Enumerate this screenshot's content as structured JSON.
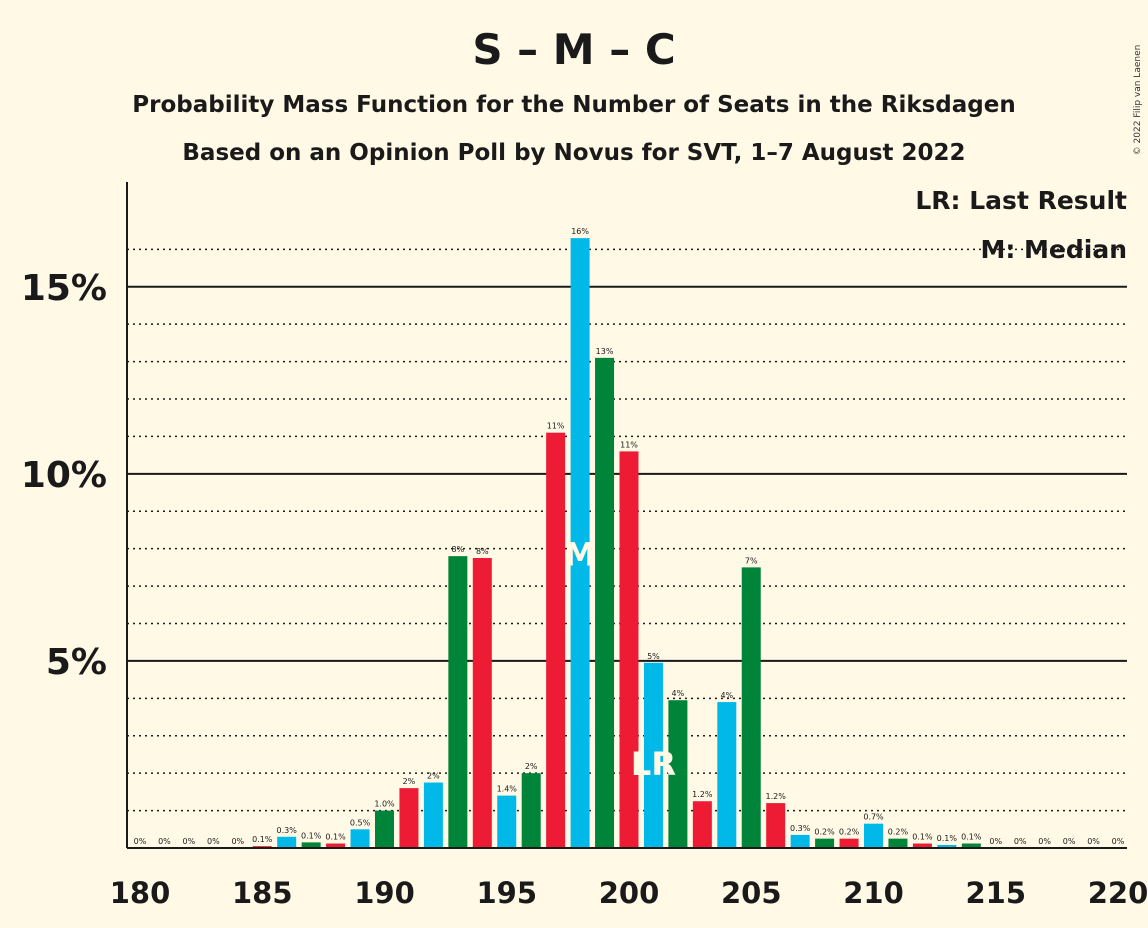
{
  "copyright": "© 2022 Filip van Laenen",
  "chart_data": {
    "type": "bar",
    "title": "S – M – C",
    "subtitle_1": "Probability Mass Function for the Number of Seats in the Riksdagen",
    "subtitle_2": "Based on an Opinion Poll by Novus for SVT, 1–7 August 2022",
    "legend": {
      "placement": "top-right",
      "last_result": "LR: Last Result",
      "median": "M: Median"
    },
    "xlim": [
      180,
      220
    ],
    "ylim": [
      0,
      17.8
    ],
    "x_ticks": [
      180,
      185,
      190,
      195,
      200,
      205,
      210,
      215,
      220
    ],
    "y_ticks": [
      {
        "value": 5,
        "label": "5%"
      },
      {
        "value": 10,
        "label": "10%"
      },
      {
        "value": 15,
        "label": "15%"
      }
    ],
    "minor_gridlines": [
      1,
      2,
      3,
      4,
      6,
      7,
      8,
      9,
      11,
      12,
      13,
      14,
      16
    ],
    "colors": {
      "background": "#FFF9E6",
      "series": [
        "#00B9E9",
        "#00843A",
        "#ED1B34"
      ],
      "marker_text": "#FFF9E6"
    },
    "median_seat": 198,
    "median_label": "M",
    "last_result_seat": 201,
    "last_result_label": "LR",
    "bars": [
      {
        "seat": 180,
        "value": 0.0,
        "label": "0%"
      },
      {
        "seat": 181,
        "value": 0.0,
        "label": "0%"
      },
      {
        "seat": 182,
        "value": 0.0,
        "label": "0%"
      },
      {
        "seat": 183,
        "value": 0.0,
        "label": "0%"
      },
      {
        "seat": 184,
        "value": 0.0,
        "label": "0%"
      },
      {
        "seat": 185,
        "value": 0.05,
        "label": "0.1%"
      },
      {
        "seat": 186,
        "value": 0.3,
        "label": "0.3%"
      },
      {
        "seat": 187,
        "value": 0.15,
        "label": "0.1%"
      },
      {
        "seat": 188,
        "value": 0.12,
        "label": "0.1%"
      },
      {
        "seat": 189,
        "value": 0.5,
        "label": "0.5%"
      },
      {
        "seat": 190,
        "value": 1.0,
        "label": "1.0%"
      },
      {
        "seat": 191,
        "value": 1.6,
        "label": "2%"
      },
      {
        "seat": 192,
        "value": 1.75,
        "label": "2%"
      },
      {
        "seat": 193,
        "value": 7.8,
        "label": "8%"
      },
      {
        "seat": 194,
        "value": 7.75,
        "label": "8%"
      },
      {
        "seat": 195,
        "value": 1.4,
        "label": "1.4%"
      },
      {
        "seat": 196,
        "value": 2.0,
        "label": "2%"
      },
      {
        "seat": 197,
        "value": 11.1,
        "label": "11%"
      },
      {
        "seat": 198,
        "value": 16.3,
        "label": "16%"
      },
      {
        "seat": 199,
        "value": 13.1,
        "label": "13%"
      },
      {
        "seat": 200,
        "value": 10.6,
        "label": "11%"
      },
      {
        "seat": 201,
        "value": 4.95,
        "label": "5%"
      },
      {
        "seat": 202,
        "value": 3.95,
        "label": "4%"
      },
      {
        "seat": 203,
        "value": 1.25,
        "label": "1.2%"
      },
      {
        "seat": 204,
        "value": 3.9,
        "label": "4%"
      },
      {
        "seat": 205,
        "value": 7.5,
        "label": "7%"
      },
      {
        "seat": 206,
        "value": 1.2,
        "label": "1.2%"
      },
      {
        "seat": 207,
        "value": 0.35,
        "label": "0.3%"
      },
      {
        "seat": 208,
        "value": 0.25,
        "label": "0.2%"
      },
      {
        "seat": 209,
        "value": 0.25,
        "label": "0.2%"
      },
      {
        "seat": 210,
        "value": 0.65,
        "label": "0.7%"
      },
      {
        "seat": 211,
        "value": 0.25,
        "label": "0.2%"
      },
      {
        "seat": 212,
        "value": 0.12,
        "label": "0.1%"
      },
      {
        "seat": 213,
        "value": 0.08,
        "label": "0.1%"
      },
      {
        "seat": 214,
        "value": 0.12,
        "label": "0.1%"
      },
      {
        "seat": 215,
        "value": 0.0,
        "label": "0%"
      },
      {
        "seat": 216,
        "value": 0.0,
        "label": "0%"
      },
      {
        "seat": 217,
        "value": 0.0,
        "label": "0%"
      },
      {
        "seat": 218,
        "value": 0.0,
        "label": "0%"
      },
      {
        "seat": 219,
        "value": 0.0,
        "label": "0%"
      },
      {
        "seat": 220,
        "value": 0.0,
        "label": "0%"
      }
    ]
  }
}
